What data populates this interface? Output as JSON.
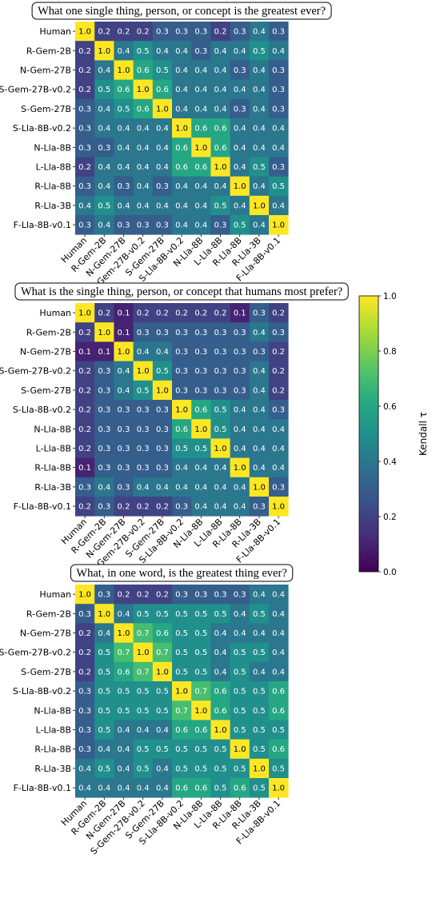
{
  "chart_data": [
    {
      "type": "heatmap",
      "title": "What one single thing, person, or concept is the greatest ever?",
      "labels": [
        "Human",
        "R-Gem-2B",
        "N-Gem-27B",
        "S-Gem-27B-v0.2",
        "S-Gem-27B",
        "S-Lla-8B-v0.2",
        "N-Lla-8B",
        "L-Lla-8B",
        "R-Lla-8B",
        "R-Lla-3B",
        "F-Lla-8B-v0.1"
      ],
      "values": [
        [
          1.0,
          0.2,
          0.2,
          0.2,
          0.3,
          0.3,
          0.3,
          0.2,
          0.3,
          0.4,
          0.3
        ],
        [
          0.2,
          1.0,
          0.4,
          0.5,
          0.4,
          0.4,
          0.3,
          0.4,
          0.4,
          0.5,
          0.4
        ],
        [
          0.2,
          0.4,
          1.0,
          0.6,
          0.5,
          0.4,
          0.4,
          0.4,
          0.3,
          0.4,
          0.3
        ],
        [
          0.2,
          0.5,
          0.6,
          1.0,
          0.6,
          0.4,
          0.4,
          0.4,
          0.4,
          0.4,
          0.3
        ],
        [
          0.3,
          0.4,
          0.5,
          0.6,
          1.0,
          0.4,
          0.4,
          0.4,
          0.3,
          0.4,
          0.3
        ],
        [
          0.3,
          0.4,
          0.4,
          0.4,
          0.4,
          1.0,
          0.6,
          0.6,
          0.4,
          0.4,
          0.4
        ],
        [
          0.3,
          0.3,
          0.4,
          0.4,
          0.4,
          0.6,
          1.0,
          0.6,
          0.4,
          0.4,
          0.4
        ],
        [
          0.2,
          0.4,
          0.4,
          0.4,
          0.4,
          0.6,
          0.6,
          1.0,
          0.4,
          0.5,
          0.3
        ],
        [
          0.3,
          0.4,
          0.3,
          0.4,
          0.3,
          0.4,
          0.4,
          0.4,
          1.0,
          0.4,
          0.5
        ],
        [
          0.4,
          0.5,
          0.4,
          0.4,
          0.4,
          0.4,
          0.4,
          0.5,
          0.4,
          1.0,
          0.4
        ],
        [
          0.3,
          0.4,
          0.3,
          0.3,
          0.3,
          0.4,
          0.4,
          0.3,
          0.5,
          0.4,
          1.0
        ]
      ]
    },
    {
      "type": "heatmap",
      "title": "What is the single thing, person, or concept that humans most prefer?",
      "labels": [
        "Human",
        "R-Gem-2B",
        "N-Gem-27B",
        "S-Gem-27B-v0.2",
        "S-Gem-27B",
        "S-Lla-8B-v0.2",
        "N-Lla-8B",
        "L-Lla-8B",
        "R-Lla-8B",
        "R-Lla-3B",
        "F-Lla-8B-v0.1"
      ],
      "values": [
        [
          1.0,
          0.2,
          0.1,
          0.2,
          0.2,
          0.2,
          0.2,
          0.2,
          0.1,
          0.3,
          0.2
        ],
        [
          0.2,
          1.0,
          0.1,
          0.3,
          0.3,
          0.3,
          0.3,
          0.3,
          0.3,
          0.4,
          0.3
        ],
        [
          0.1,
          0.1,
          1.0,
          0.4,
          0.4,
          0.3,
          0.3,
          0.3,
          0.3,
          0.3,
          0.2
        ],
        [
          0.2,
          0.3,
          0.4,
          1.0,
          0.5,
          0.3,
          0.3,
          0.3,
          0.3,
          0.4,
          0.2
        ],
        [
          0.2,
          0.3,
          0.4,
          0.5,
          1.0,
          0.3,
          0.3,
          0.3,
          0.3,
          0.4,
          0.2
        ],
        [
          0.2,
          0.3,
          0.3,
          0.3,
          0.3,
          1.0,
          0.6,
          0.5,
          0.4,
          0.4,
          0.3
        ],
        [
          0.2,
          0.3,
          0.3,
          0.3,
          0.3,
          0.6,
          1.0,
          0.5,
          0.4,
          0.4,
          0.4
        ],
        [
          0.2,
          0.3,
          0.3,
          0.3,
          0.3,
          0.5,
          0.5,
          1.0,
          0.4,
          0.4,
          0.4
        ],
        [
          0.1,
          0.3,
          0.3,
          0.3,
          0.3,
          0.4,
          0.4,
          0.4,
          1.0,
          0.4,
          0.4
        ],
        [
          0.3,
          0.4,
          0.3,
          0.4,
          0.4,
          0.4,
          0.4,
          0.4,
          0.4,
          1.0,
          0.3
        ],
        [
          0.2,
          0.3,
          0.2,
          0.2,
          0.2,
          0.3,
          0.4,
          0.4,
          0.4,
          0.3,
          1.0
        ]
      ]
    },
    {
      "type": "heatmap",
      "title": "What, in one word, is the greatest thing ever?",
      "labels": [
        "Human",
        "R-Gem-2B",
        "N-Gem-27B",
        "S-Gem-27B-v0.2",
        "S-Gem-27B",
        "S-Lla-8B-v0.2",
        "N-Lla-8B",
        "L-Lla-8B",
        "R-Lla-8B",
        "R-Lla-3B",
        "F-Lla-8B-v0.1"
      ],
      "values": [
        [
          1.0,
          0.3,
          0.2,
          0.2,
          0.2,
          0.3,
          0.3,
          0.3,
          0.3,
          0.4,
          0.4
        ],
        [
          0.3,
          1.0,
          0.4,
          0.5,
          0.5,
          0.5,
          0.5,
          0.5,
          0.4,
          0.5,
          0.4
        ],
        [
          0.2,
          0.4,
          1.0,
          0.7,
          0.6,
          0.5,
          0.5,
          0.4,
          0.4,
          0.4,
          0.4
        ],
        [
          0.2,
          0.5,
          0.7,
          1.0,
          0.7,
          0.5,
          0.5,
          0.4,
          0.5,
          0.5,
          0.4
        ],
        [
          0.2,
          0.5,
          0.6,
          0.7,
          1.0,
          0.5,
          0.5,
          0.4,
          0.5,
          0.4,
          0.4
        ],
        [
          0.3,
          0.5,
          0.5,
          0.5,
          0.5,
          1.0,
          0.7,
          0.6,
          0.5,
          0.5,
          0.6
        ],
        [
          0.3,
          0.5,
          0.5,
          0.5,
          0.5,
          0.7,
          1.0,
          0.6,
          0.5,
          0.5,
          0.6
        ],
        [
          0.3,
          0.5,
          0.4,
          0.4,
          0.4,
          0.6,
          0.6,
          1.0,
          0.5,
          0.5,
          0.5
        ],
        [
          0.3,
          0.4,
          0.4,
          0.5,
          0.5,
          0.5,
          0.5,
          0.5,
          1.0,
          0.5,
          0.6
        ],
        [
          0.4,
          0.5,
          0.4,
          0.5,
          0.4,
          0.5,
          0.5,
          0.5,
          0.5,
          1.0,
          0.5
        ],
        [
          0.4,
          0.4,
          0.4,
          0.4,
          0.4,
          0.6,
          0.6,
          0.5,
          0.6,
          0.5,
          1.0
        ]
      ]
    }
  ],
  "colorbar": {
    "label": "Kendall τ",
    "range": [
      0.0,
      1.0
    ],
    "ticks": [
      "0.0",
      "0.2",
      "0.4",
      "0.6",
      "0.8",
      "1.0"
    ],
    "colormap": "viridis"
  }
}
